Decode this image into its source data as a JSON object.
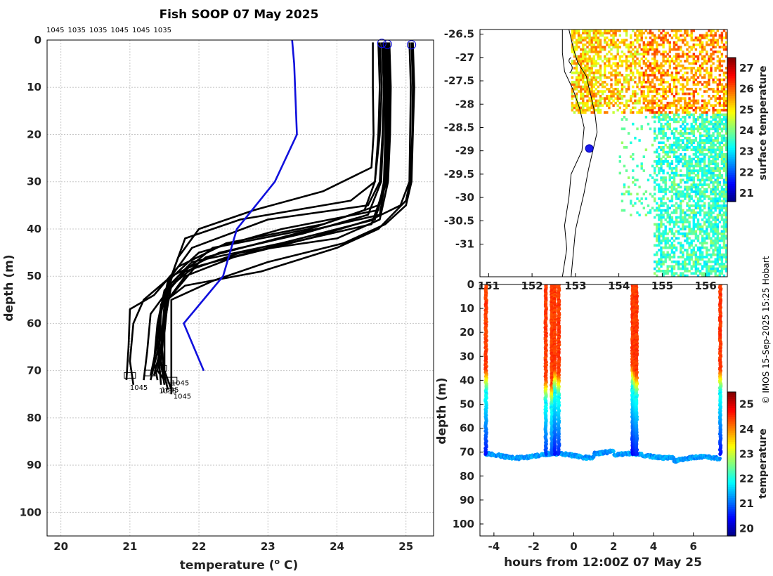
{
  "title": "Fish SOOP 07 May 2025",
  "copyright": "© IMOS 15-Sep-2025 15:25 Hobart",
  "chart_data": [
    {
      "type": "line",
      "id": "profiles",
      "xlabel_main": "temperature (",
      "xlabel_sup": "o",
      "xlabel_end": " C)",
      "ylabel": "depth (m)",
      "xlim": [
        19.8,
        25.4
      ],
      "ylim": [
        105,
        0
      ],
      "xticks": [
        20,
        21,
        22,
        23,
        24,
        25
      ],
      "yticks": [
        0,
        10,
        20,
        30,
        40,
        50,
        60,
        70,
        80,
        90,
        100
      ],
      "grid": true,
      "top_labels": [
        "1045",
        "1035",
        "1035",
        "1045",
        "1045",
        "1035"
      ],
      "bottom_labels": [
        {
          "text": "1045",
          "x": 21.6,
          "y": 72.5
        },
        {
          "text": "1045",
          "x": 21.0,
          "y": 73.5
        },
        {
          "text": "1045",
          "x": 21.45,
          "y": 74
        },
        {
          "text": "1035",
          "x": 21.42,
          "y": 74.2
        },
        {
          "text": "1045",
          "x": 21.63,
          "y": 75.3
        }
      ],
      "start_markers": [
        {
          "x": 24.65,
          "y": 0.7
        },
        {
          "x": 24.73,
          "y": 0.9
        },
        {
          "x": 25.08,
          "y": 1.0
        }
      ],
      "reference_profile": {
        "name": "climatology",
        "color": "#1010dd",
        "points": [
          [
            23.35,
            0
          ],
          [
            23.38,
            5
          ],
          [
            23.42,
            20
          ],
          [
            23.1,
            30
          ],
          [
            22.55,
            40
          ],
          [
            22.35,
            50
          ],
          [
            21.78,
            60
          ],
          [
            22.07,
            70
          ]
        ]
      },
      "profiles": [
        [
          [
            24.52,
            0.5
          ],
          [
            24.52,
            10
          ],
          [
            24.53,
            20
          ],
          [
            24.5,
            27
          ],
          [
            23.8,
            32
          ],
          [
            22.8,
            36
          ],
          [
            22.0,
            40
          ],
          [
            21.7,
            46
          ],
          [
            21.55,
            52
          ],
          [
            21.5,
            60
          ],
          [
            21.4,
            70
          ],
          [
            21.5,
            72
          ]
        ],
        [
          [
            24.62,
            0.5
          ],
          [
            24.65,
            10
          ],
          [
            24.62,
            20
          ],
          [
            24.55,
            30
          ],
          [
            24.2,
            34
          ],
          [
            22.6,
            38
          ],
          [
            21.8,
            42
          ],
          [
            21.65,
            48
          ],
          [
            21.5,
            56
          ],
          [
            21.45,
            65
          ],
          [
            21.35,
            71
          ]
        ],
        [
          [
            24.65,
            0.5
          ],
          [
            24.68,
            10
          ],
          [
            24.66,
            20
          ],
          [
            24.62,
            30
          ],
          [
            24.45,
            35
          ],
          [
            23.0,
            38
          ],
          [
            21.9,
            44
          ],
          [
            21.6,
            50
          ],
          [
            21.5,
            58
          ],
          [
            21.4,
            66
          ],
          [
            21.3,
            72
          ]
        ],
        [
          [
            24.68,
            0.5
          ],
          [
            24.7,
            10
          ],
          [
            24.7,
            20
          ],
          [
            24.68,
            30
          ],
          [
            24.6,
            36
          ],
          [
            23.2,
            40
          ],
          [
            22.0,
            45
          ],
          [
            21.55,
            51
          ],
          [
            21.45,
            58
          ],
          [
            21.42,
            66
          ],
          [
            21.5,
            73
          ]
        ],
        [
          [
            24.7,
            0.5
          ],
          [
            24.72,
            10
          ],
          [
            24.72,
            20
          ],
          [
            24.7,
            30
          ],
          [
            24.62,
            37
          ],
          [
            23.4,
            41
          ],
          [
            22.1,
            46
          ],
          [
            21.6,
            52
          ],
          [
            21.5,
            60
          ],
          [
            21.45,
            68
          ],
          [
            21.55,
            74
          ]
        ],
        [
          [
            24.72,
            0.5
          ],
          [
            24.74,
            10
          ],
          [
            24.74,
            20
          ],
          [
            24.72,
            30
          ],
          [
            24.55,
            38
          ],
          [
            23.2,
            43
          ],
          [
            21.9,
            47
          ],
          [
            21.5,
            53
          ],
          [
            21.4,
            60
          ],
          [
            21.35,
            68
          ],
          [
            21.4,
            72
          ]
        ],
        [
          [
            24.74,
            0.5
          ],
          [
            24.76,
            10
          ],
          [
            24.75,
            20
          ],
          [
            24.72,
            30
          ],
          [
            24.5,
            39
          ],
          [
            23.0,
            44
          ],
          [
            21.95,
            48
          ],
          [
            21.55,
            55
          ],
          [
            21.45,
            63
          ],
          [
            21.5,
            71
          ]
        ],
        [
          [
            24.6,
            0.5
          ],
          [
            24.62,
            10
          ],
          [
            24.6,
            20
          ],
          [
            24.55,
            30
          ],
          [
            24.4,
            36
          ],
          [
            23.8,
            39
          ],
          [
            22.4,
            43
          ],
          [
            21.7,
            48
          ],
          [
            21.35,
            54
          ],
          [
            21.0,
            57
          ],
          [
            20.98,
            65
          ],
          [
            20.95,
            72
          ]
        ],
        [
          [
            24.66,
            0.5
          ],
          [
            24.68,
            10
          ],
          [
            24.67,
            20
          ],
          [
            24.64,
            30
          ],
          [
            24.45,
            37
          ],
          [
            23.5,
            41
          ],
          [
            22.3,
            45
          ],
          [
            21.6,
            50
          ],
          [
            21.2,
            55
          ],
          [
            21.05,
            60
          ],
          [
            21.0,
            68
          ],
          [
            21.05,
            73
          ]
        ],
        [
          [
            25.05,
            0.5
          ],
          [
            25.07,
            10
          ],
          [
            25.06,
            20
          ],
          [
            25.05,
            30
          ],
          [
            24.92,
            35
          ],
          [
            24.5,
            38
          ],
          [
            23.6,
            42
          ],
          [
            22.5,
            46
          ],
          [
            21.8,
            50
          ],
          [
            21.55,
            55
          ],
          [
            21.5,
            62
          ],
          [
            21.5,
            70
          ],
          [
            21.6,
            74
          ]
        ],
        [
          [
            25.08,
            0.5
          ],
          [
            25.1,
            10
          ],
          [
            25.09,
            20
          ],
          [
            25.06,
            30
          ],
          [
            25.0,
            34
          ],
          [
            24.6,
            40
          ],
          [
            24.0,
            44
          ],
          [
            22.9,
            49
          ],
          [
            21.8,
            52
          ],
          [
            21.45,
            56
          ],
          [
            21.4,
            64
          ],
          [
            21.45,
            73
          ]
        ],
        [
          [
            25.1,
            0.5
          ],
          [
            25.12,
            10
          ],
          [
            25.1,
            20
          ],
          [
            25.08,
            30
          ],
          [
            25.0,
            35
          ],
          [
            24.7,
            39
          ],
          [
            24.1,
            43
          ],
          [
            23.0,
            47
          ],
          [
            22.2,
            51
          ],
          [
            21.6,
            55
          ],
          [
            21.6,
            65
          ],
          [
            21.6,
            75
          ]
        ],
        [
          [
            24.76,
            0.5
          ],
          [
            24.78,
            10
          ],
          [
            24.77,
            20
          ],
          [
            24.74,
            30
          ],
          [
            24.62,
            38
          ],
          [
            24.0,
            42
          ],
          [
            22.6,
            45
          ],
          [
            21.8,
            49
          ],
          [
            21.5,
            54
          ],
          [
            21.3,
            58
          ],
          [
            21.25,
            66
          ],
          [
            21.2,
            72
          ]
        ],
        [
          [
            24.7,
            0.5
          ],
          [
            24.73,
            10
          ],
          [
            24.72,
            20
          ],
          [
            24.7,
            30
          ],
          [
            24.6,
            35
          ],
          [
            23.6,
            40
          ],
          [
            22.2,
            44
          ],
          [
            21.7,
            50
          ],
          [
            21.45,
            56
          ],
          [
            21.4,
            64
          ],
          [
            21.3,
            71
          ]
        ]
      ]
    },
    {
      "type": "heatmap",
      "id": "sst_map",
      "xlim": [
        150.8,
        156.5
      ],
      "ylim": [
        -31.7,
        -26.4
      ],
      "xticks": [
        151,
        152,
        153,
        154,
        155,
        156
      ],
      "yticks": [
        -26.5,
        -27,
        -27.5,
        -28,
        -28.5,
        -29,
        -29.5,
        -30,
        -30.5,
        -31
      ],
      "colorbar_label": "surface temperature",
      "colorbar_range": [
        20.6,
        27.5
      ],
      "colorbar_ticks": [
        21,
        22,
        23,
        24,
        25,
        26,
        27
      ],
      "vessel_position": {
        "lon": 153.32,
        "lat": -28.95
      }
    },
    {
      "type": "scatter",
      "id": "section",
      "xlabel": "hours from 12:00Z 07 May 25",
      "ylabel": "depth (m)",
      "xlim": [
        -4.7,
        7.7
      ],
      "ylim": [
        105,
        0
      ],
      "xticks": [
        -4,
        -2,
        0,
        2,
        4,
        6
      ],
      "yticks": [
        0,
        10,
        20,
        30,
        40,
        50,
        60,
        70,
        80,
        90,
        100
      ],
      "colorbar_label": "temperature",
      "colorbar_range": [
        19.7,
        25.5
      ],
      "colorbar_ticks": [
        20,
        21,
        22,
        23,
        24,
        25
      ],
      "cast_times": [
        -4.4,
        -1.4,
        -1.1,
        -0.95,
        -0.75,
        2.95,
        3.05,
        3.15,
        7.35
      ],
      "cast_thermocline_top": [
        36,
        40,
        42,
        36,
        38,
        34,
        36,
        38,
        36
      ]
    }
  ]
}
